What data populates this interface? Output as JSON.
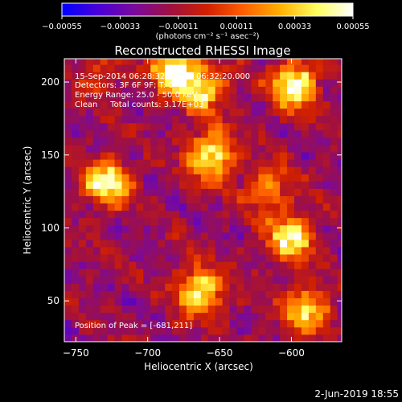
{
  "chart_data": {
    "type": "heatmap",
    "title": "Reconstructed RHESSI Image",
    "xlabel": "Heliocentric X (arcsec)",
    "ylabel": "Heliocentric Y (arcsec)",
    "xlim": [
      -758,
      -565
    ],
    "ylim": [
      22,
      216
    ],
    "x_ticks": [
      -750,
      -700,
      -650,
      -600
    ],
    "x_tick_labels": [
      "−750",
      "−700",
      "−650",
      "−600"
    ],
    "y_ticks": [
      50,
      100,
      150,
      200
    ],
    "y_tick_labels": [
      "50",
      "100",
      "150",
      "200"
    ],
    "colorbar": {
      "range": [
        -0.00055,
        0.00055
      ],
      "ticks": [
        -0.00055,
        -0.00033,
        -0.00011,
        0.00011,
        0.00033,
        0.00055
      ],
      "tick_labels": [
        "−0.00055",
        "−0.00033",
        "−0.00011",
        "0.00011",
        "0.00033",
        "0.00055"
      ],
      "unit_label": "(photons cm⁻² s⁻¹ asec⁻²)",
      "colors": [
        "#0000ff",
        "#4a00d8",
        "#7a0a9a",
        "#a01040",
        "#d02000",
        "#ff6000",
        "#ffb000",
        "#ffff60",
        "#ffffff"
      ]
    },
    "annotations": [
      "15-Sep-2014 06:28:32.000 to 06:32:20.000",
      "Detectors: 3F 6F 9F; T: 0",
      "Energy Range: 25.0 - 50.0 keV",
      "Clean     Total counts: 3.17E+03",
      "Position of Peak = [-681,211]"
    ],
    "peak_position": [
      -681,
      211
    ],
    "sources": [
      {
        "x": -680,
        "y": 208,
        "intensity": 0.95
      },
      {
        "x": -660,
        "y": 194,
        "intensity": 0.6
      },
      {
        "x": -598,
        "y": 198,
        "intensity": 0.85
      },
      {
        "x": -656,
        "y": 150,
        "intensity": 0.85
      },
      {
        "x": -728,
        "y": 132,
        "intensity": 0.8
      },
      {
        "x": -663,
        "y": 57,
        "intensity": 0.8
      },
      {
        "x": -600,
        "y": 95,
        "intensity": 0.75
      },
      {
        "x": -590,
        "y": 45,
        "intensity": 0.7
      },
      {
        "x": -618,
        "y": 128,
        "intensity": 0.45
      },
      {
        "x": -735,
        "y": 205,
        "intensity": 0.25
      }
    ]
  },
  "footer": {
    "date": "2-Jun-2019 18:55"
  }
}
